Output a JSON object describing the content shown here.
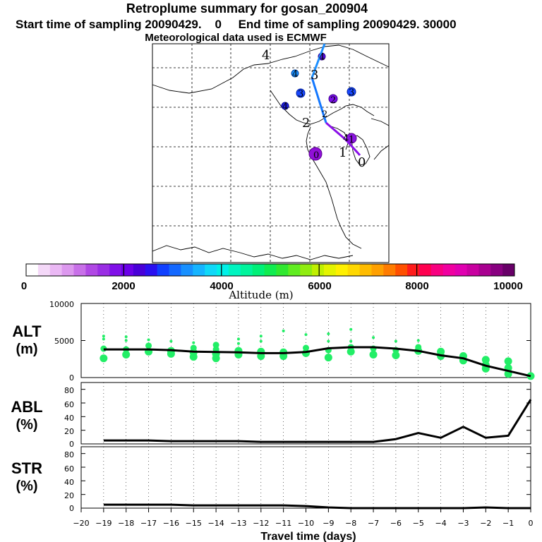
{
  "header": {
    "title": "Retroplume summary for gosan_200904",
    "sampling_line": "Start time of sampling 20090429.    0     End time of sampling 20090429. 30000",
    "met_line": "Meteorological data used is ECMWF"
  },
  "colorbar": {
    "title": "Altitude (m)",
    "tick_labels": [
      "0",
      "2000",
      "4000",
      "6000",
      "8000",
      "10000"
    ],
    "colors": [
      "#ffffff",
      "#f4d8f8",
      "#eab8f4",
      "#dc98ee",
      "#c870e8",
      "#b048e4",
      "#9a2ee4",
      "#8010e8",
      "#6a00e8",
      "#4800d8",
      "#2a10f0",
      "#1040ff",
      "#1468ff",
      "#1890ff",
      "#16b4ff",
      "#10d8f8",
      "#00f0e8",
      "#00f4c0",
      "#00f49c",
      "#00f078",
      "#10ec50",
      "#30e830",
      "#60ec20",
      "#90ec10",
      "#c0f000",
      "#e4f400",
      "#fff000",
      "#ffd800",
      "#ffbc00",
      "#ffa000",
      "#ff7c00",
      "#ff5000",
      "#ff1c1c",
      "#ff0050",
      "#f80080",
      "#f000a0",
      "#e000b0",
      "#c800a0",
      "#a80090",
      "#880080",
      "#680068"
    ]
  },
  "map": {
    "trajectory_labels": [
      "0",
      "1",
      "2",
      "3",
      "4"
    ],
    "cluster_labels": [
      "0",
      "1",
      "2",
      "2",
      "3",
      "3",
      "4",
      "4",
      "4",
      "4"
    ]
  },
  "panels": {
    "alt": {
      "label_line1": "ALT",
      "label_line2": "(m)",
      "y_ticks": [
        "10000",
        "5000",
        "0"
      ]
    },
    "abl": {
      "label_line1": "ABL",
      "label_line2": "(%)",
      "y_ticks": [
        "80",
        "60",
        "40",
        "20",
        "0"
      ]
    },
    "str": {
      "label_line1": "STR",
      "label_line2": "(%)",
      "y_ticks": [
        "80",
        "60",
        "40",
        "20",
        "0"
      ]
    }
  },
  "x_axis": {
    "label": "Travel time (days)",
    "tick_labels": [
      "−20",
      "−19",
      "−18",
      "−17",
      "−16",
      "−15",
      "−14",
      "−13",
      "−12",
      "−11",
      "−10",
      "−9",
      "−8",
      "−7",
      "−6",
      "−5",
      "−4",
      "−3",
      "−2",
      "−1",
      "0"
    ]
  },
  "chart_data": {
    "type": "line",
    "x": [
      -20,
      -19,
      -18,
      -17,
      -16,
      -15,
      -14,
      -13,
      -12,
      -11,
      -10,
      -9,
      -8,
      -7,
      -6,
      -5,
      -4,
      -3,
      -2,
      -1,
      0
    ],
    "xlabel": "Travel time (days)",
    "xlim": [
      -20,
      0
    ],
    "series": [
      {
        "name": "ALT mean altitude (m)",
        "panel": "alt",
        "ylim": [
          0,
          10000
        ],
        "x": [
          -19,
          -18,
          -17,
          -16,
          -15,
          -14,
          -13,
          -12,
          -11,
          -10,
          -9,
          -8,
          -7,
          -6,
          -5,
          -4,
          -3,
          -2,
          -1,
          0
        ],
        "values": [
          3800,
          3800,
          3800,
          3700,
          3500,
          3450,
          3400,
          3300,
          3300,
          3450,
          3950,
          4100,
          4100,
          3900,
          3600,
          3000,
          2600,
          1600,
          900,
          200
        ]
      },
      {
        "name": "ABL fraction (%)",
        "panel": "abl",
        "ylim": [
          0,
          90
        ],
        "x": [
          -19,
          -18,
          -17,
          -16,
          -15,
          -14,
          -13,
          -12,
          -11,
          -10,
          -9,
          -8,
          -7,
          -6,
          -5,
          -4,
          -3,
          -2,
          -1,
          0
        ],
        "values": [
          5,
          5,
          5,
          4,
          4,
          4,
          4,
          3,
          3,
          3,
          3,
          3,
          3,
          7,
          16,
          9,
          25,
          9,
          12,
          65
        ]
      },
      {
        "name": "STR fraction (%)",
        "panel": "str",
        "ylim": [
          0,
          90
        ],
        "x": [
          -19,
          -18,
          -17,
          -16,
          -15,
          -14,
          -13,
          -12,
          -11,
          -10,
          -9,
          -8,
          -7,
          -6,
          -5,
          -4,
          -3,
          -2,
          -1,
          0
        ],
        "values": [
          5,
          5,
          5,
          5,
          4,
          4,
          4,
          4,
          4,
          3,
          1,
          0,
          0,
          0,
          0,
          0,
          0,
          1,
          0,
          0
        ]
      }
    ],
    "altitude_scatter": [
      {
        "x": -19,
        "alt": [
          2600,
          3900,
          5200,
          5600
        ]
      },
      {
        "x": -18,
        "alt": [
          3100,
          3800,
          5000,
          5500
        ]
      },
      {
        "x": -17,
        "alt": [
          3500,
          4300,
          5100
        ]
      },
      {
        "x": -16,
        "alt": [
          3200,
          3600,
          4900
        ]
      },
      {
        "x": -15,
        "alt": [
          2800,
          3400,
          4000,
          4700
        ]
      },
      {
        "x": -14,
        "alt": [
          2600,
          3200,
          3800,
          4400
        ]
      },
      {
        "x": -13,
        "alt": [
          3100,
          3600,
          4600,
          5200
        ]
      },
      {
        "x": -12,
        "alt": [
          2900,
          3500,
          4900,
          5600
        ]
      },
      {
        "x": -11,
        "alt": [
          2900,
          3400,
          6300
        ]
      },
      {
        "x": -10,
        "alt": [
          3300,
          4000,
          5800
        ]
      },
      {
        "x": -9,
        "alt": [
          2700,
          3700,
          4900,
          5900
        ]
      },
      {
        "x": -8,
        "alt": [
          3500,
          4100,
          4900,
          6500
        ]
      },
      {
        "x": -7,
        "alt": [
          3100,
          3900,
          5400
        ]
      },
      {
        "x": -6,
        "alt": [
          3000,
          3700,
          4900
        ]
      },
      {
        "x": -5,
        "alt": [
          3600,
          4100,
          5000
        ]
      },
      {
        "x": -4,
        "alt": [
          2900,
          3500
        ]
      },
      {
        "x": -3,
        "alt": [
          2300,
          2900
        ]
      },
      {
        "x": -2,
        "alt": [
          1200,
          1700,
          2400
        ]
      },
      {
        "x": -1,
        "alt": [
          500,
          1300,
          2200
        ]
      },
      {
        "x": 0,
        "alt": [
          200
        ]
      }
    ]
  }
}
